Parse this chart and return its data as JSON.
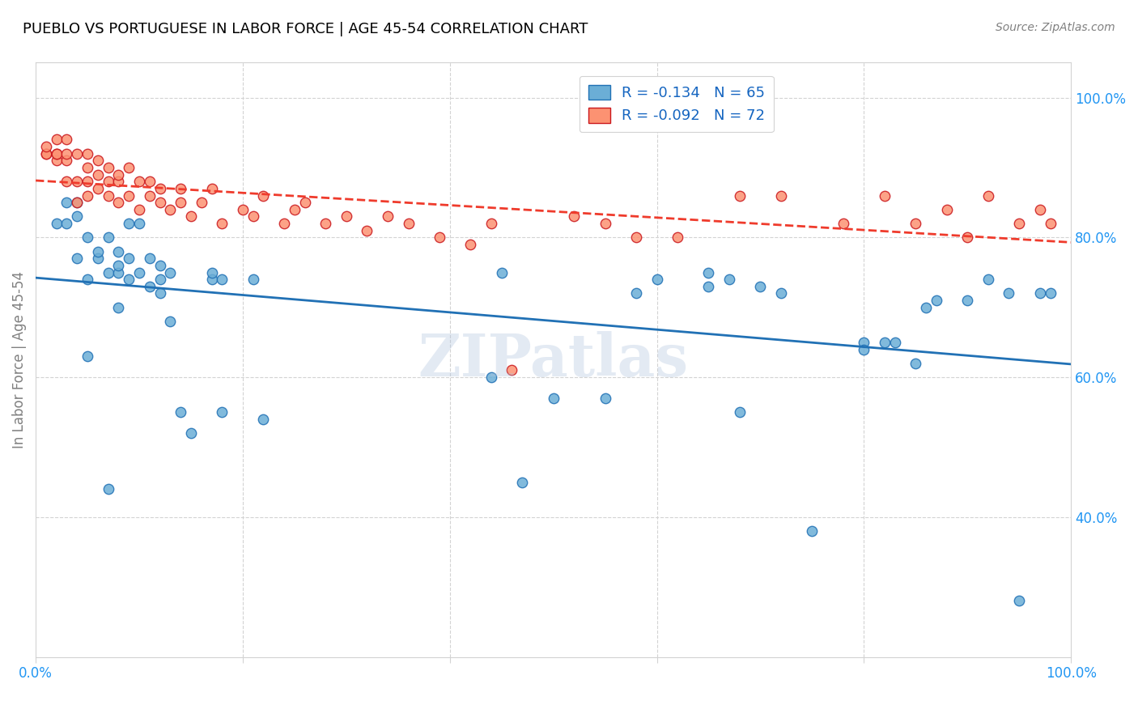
{
  "title": "PUEBLO VS PORTUGUESE IN LABOR FORCE | AGE 45-54 CORRELATION CHART",
  "source": "Source: ZipAtlas.com",
  "xlabel": "",
  "ylabel": "In Labor Force | Age 45-54",
  "xlim": [
    0.0,
    1.0
  ],
  "ylim": [
    0.2,
    1.05
  ],
  "xticks": [
    0.0,
    0.2,
    0.4,
    0.6,
    0.8,
    1.0
  ],
  "xticklabels": [
    "0.0%",
    "",
    "",
    "",
    "",
    "100.0%"
  ],
  "ytick_positions": [
    0.4,
    0.6,
    0.8,
    1.0
  ],
  "ytick_labels": [
    "40.0%",
    "60.0%",
    "80.0%",
    "100.0%"
  ],
  "legend_r_pueblo": "R = -0.134",
  "legend_n_pueblo": "N = 65",
  "legend_r_portuguese": "R = -0.092",
  "legend_n_portuguese": "N = 72",
  "pueblo_color": "#6baed6",
  "portuguese_color": "#fc9272",
  "pueblo_line_color": "#2171b5",
  "portuguese_line_color": "#ef3b2c",
  "watermark": "ZIPatlas",
  "pueblo_scatter_x": [
    0.02,
    0.03,
    0.03,
    0.04,
    0.04,
    0.04,
    0.05,
    0.05,
    0.05,
    0.06,
    0.06,
    0.07,
    0.07,
    0.07,
    0.08,
    0.08,
    0.08,
    0.08,
    0.09,
    0.09,
    0.09,
    0.1,
    0.1,
    0.11,
    0.11,
    0.12,
    0.12,
    0.12,
    0.13,
    0.13,
    0.14,
    0.15,
    0.17,
    0.17,
    0.18,
    0.18,
    0.21,
    0.22,
    0.44,
    0.45,
    0.47,
    0.5,
    0.55,
    0.58,
    0.6,
    0.65,
    0.65,
    0.67,
    0.68,
    0.7,
    0.72,
    0.75,
    0.8,
    0.8,
    0.82,
    0.83,
    0.85,
    0.86,
    0.87,
    0.9,
    0.92,
    0.94,
    0.95,
    0.97,
    0.98
  ],
  "pueblo_scatter_y": [
    0.82,
    0.82,
    0.85,
    0.77,
    0.83,
    0.85,
    0.63,
    0.74,
    0.8,
    0.77,
    0.78,
    0.44,
    0.75,
    0.8,
    0.7,
    0.75,
    0.76,
    0.78,
    0.74,
    0.77,
    0.82,
    0.75,
    0.82,
    0.73,
    0.77,
    0.72,
    0.74,
    0.76,
    0.68,
    0.75,
    0.55,
    0.52,
    0.74,
    0.75,
    0.74,
    0.55,
    0.74,
    0.54,
    0.6,
    0.75,
    0.45,
    0.57,
    0.57,
    0.72,
    0.74,
    0.73,
    0.75,
    0.74,
    0.55,
    0.73,
    0.72,
    0.38,
    0.65,
    0.64,
    0.65,
    0.65,
    0.62,
    0.7,
    0.71,
    0.71,
    0.74,
    0.72,
    0.28,
    0.72,
    0.72
  ],
  "portuguese_scatter_x": [
    0.01,
    0.01,
    0.01,
    0.02,
    0.02,
    0.02,
    0.02,
    0.03,
    0.03,
    0.03,
    0.03,
    0.04,
    0.04,
    0.04,
    0.05,
    0.05,
    0.05,
    0.05,
    0.06,
    0.06,
    0.06,
    0.07,
    0.07,
    0.07,
    0.08,
    0.08,
    0.08,
    0.09,
    0.09,
    0.1,
    0.1,
    0.11,
    0.11,
    0.12,
    0.12,
    0.13,
    0.14,
    0.14,
    0.15,
    0.16,
    0.17,
    0.18,
    0.2,
    0.21,
    0.22,
    0.24,
    0.25,
    0.26,
    0.28,
    0.3,
    0.32,
    0.34,
    0.36,
    0.39,
    0.42,
    0.44,
    0.46,
    0.52,
    0.55,
    0.58,
    0.62,
    0.68,
    0.72,
    0.78,
    0.82,
    0.85,
    0.88,
    0.9,
    0.92,
    0.95,
    0.97,
    0.98
  ],
  "portuguese_scatter_y": [
    0.92,
    0.92,
    0.93,
    0.91,
    0.92,
    0.92,
    0.94,
    0.88,
    0.91,
    0.92,
    0.94,
    0.85,
    0.88,
    0.92,
    0.86,
    0.88,
    0.9,
    0.92,
    0.87,
    0.89,
    0.91,
    0.86,
    0.88,
    0.9,
    0.85,
    0.88,
    0.89,
    0.86,
    0.9,
    0.84,
    0.88,
    0.86,
    0.88,
    0.85,
    0.87,
    0.84,
    0.85,
    0.87,
    0.83,
    0.85,
    0.87,
    0.82,
    0.84,
    0.83,
    0.86,
    0.82,
    0.84,
    0.85,
    0.82,
    0.83,
    0.81,
    0.83,
    0.82,
    0.8,
    0.79,
    0.82,
    0.61,
    0.83,
    0.82,
    0.8,
    0.8,
    0.86,
    0.86,
    0.82,
    0.86,
    0.82,
    0.84,
    0.8,
    0.86,
    0.82,
    0.84,
    0.82
  ]
}
